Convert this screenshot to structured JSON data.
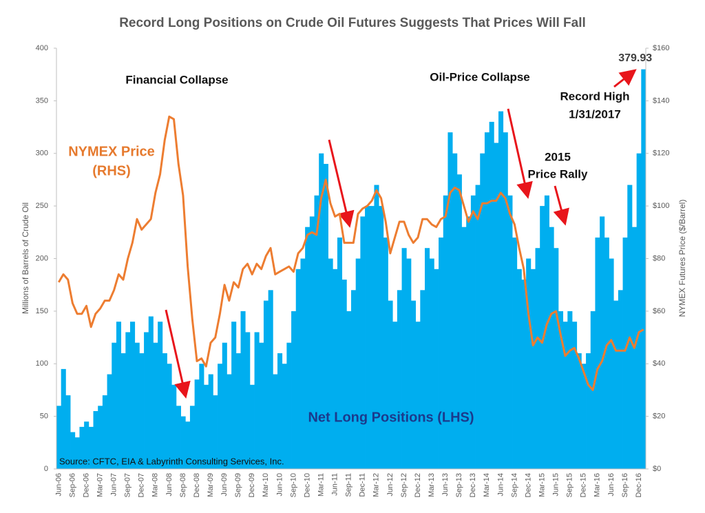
{
  "chart_data": {
    "type": "bar-line",
    "title": "Record Long Positions on Crude Oil Futures Suggests That Prices Will Fall",
    "y_label": "Millions of Barrels of Crude Oil",
    "y2_label": "NYMEX Futures Price ($/Barrel)",
    "source": "Source: CFTC, EIA & Labyrinth Consulting Services, Inc.",
    "annotations": [
      "Financial Collapse",
      "Oil-Price Collapse",
      "Record High",
      "1/31/2017",
      "2015",
      "Price Rally",
      "NYMEX Price",
      "(RHS)",
      "Net Long Positions (LHS)"
    ],
    "categories": [
      "Jun-06",
      null,
      null,
      "Sep-06",
      null,
      null,
      "Dec-06",
      null,
      null,
      "Mar-07",
      null,
      null,
      "Jun-07",
      null,
      null,
      "Sep-07",
      null,
      null,
      "Dec-07",
      null,
      null,
      "Mar-08",
      null,
      null,
      "Jun-08",
      null,
      null,
      "Sep-08",
      null,
      null,
      "Dec-08",
      null,
      null,
      "Mar-09",
      null,
      null,
      "Jun-09",
      null,
      null,
      "Sep-09",
      null,
      null,
      "Dec-09",
      null,
      null,
      "Mar-10",
      null,
      null,
      "Jun-10",
      null,
      null,
      "Sep-10",
      null,
      null,
      "Dec-10",
      null,
      null,
      "Mar-11",
      null,
      null,
      "Jun-11",
      null,
      null,
      "Sep-11",
      null,
      null,
      "Dec-11",
      null,
      null,
      "Mar-12",
      null,
      null,
      "Jun-12",
      null,
      null,
      "Sep-12",
      null,
      null,
      "Dec-12",
      null,
      null,
      "Mar-13",
      null,
      null,
      "Jun-13",
      null,
      null,
      "Sep-13",
      null,
      null,
      "Dec-13",
      null,
      null,
      "Mar-14",
      null,
      null,
      "Jun-14",
      null,
      null,
      "Sep-14",
      null,
      null,
      "Dec-14",
      null,
      null,
      "Mar-15",
      null,
      null,
      "Jun-15",
      null,
      null,
      "Sep-15",
      null,
      null,
      "Dec-15",
      null,
      null,
      "Mar-16",
      null,
      null,
      "Jun-16",
      null,
      null,
      "Sep-16",
      null,
      null,
      "Dec-16",
      null
    ],
    "series": [
      {
        "name": "Net Long Positions (LHS)",
        "type": "bar",
        "color": "#00aeef",
        "values": [
          60,
          95,
          70,
          35,
          30,
          40,
          45,
          40,
          55,
          60,
          70,
          90,
          120,
          140,
          110,
          130,
          140,
          120,
          110,
          130,
          145,
          120,
          140,
          110,
          100,
          80,
          60,
          50,
          45,
          60,
          85,
          100,
          80,
          90,
          70,
          100,
          120,
          90,
          140,
          110,
          150,
          130,
          80,
          130,
          120,
          160,
          170,
          90,
          110,
          100,
          120,
          150,
          190,
          200,
          230,
          240,
          260,
          300,
          290,
          200,
          190,
          220,
          180,
          150,
          170,
          200,
          240,
          250,
          250,
          270,
          250,
          220,
          160,
          140,
          170,
          210,
          200,
          160,
          140,
          170,
          210,
          200,
          190,
          220,
          260,
          320,
          300,
          280,
          230,
          240,
          260,
          270,
          300,
          320,
          330,
          310,
          340,
          320,
          260,
          220,
          190,
          180,
          200,
          190,
          210,
          250,
          260,
          230,
          210,
          150,
          140,
          150,
          140,
          110,
          100,
          110,
          150,
          220,
          240,
          220,
          200,
          160,
          170,
          220,
          270,
          230,
          300,
          379.93
        ]
      },
      {
        "name": "NYMEX Price (RHS)",
        "type": "line",
        "axis": "y2",
        "color": "#ed7d31",
        "values": [
          71,
          74,
          72,
          63,
          59,
          59,
          62,
          54,
          59,
          61,
          64,
          64,
          68,
          74,
          72,
          80,
          86,
          95,
          91,
          93,
          95,
          105,
          112,
          125,
          134,
          133,
          116,
          104,
          77,
          57,
          41,
          42,
          39,
          48,
          50,
          59,
          70,
          64,
          71,
          69,
          76,
          78,
          74,
          78,
          76,
          81,
          84,
          74,
          75,
          76,
          77,
          75,
          82,
          84,
          89,
          90,
          89,
          103,
          110,
          101,
          96,
          97,
          86,
          86,
          86,
          97,
          99,
          100,
          102,
          106,
          103,
          94,
          82,
          88,
          94,
          94,
          89,
          86,
          88,
          95,
          95,
          93,
          92,
          95,
          96,
          105,
          107,
          106,
          100,
          94,
          98,
          95,
          101,
          101,
          102,
          102,
          105,
          103,
          97,
          93,
          84,
          76,
          59,
          47,
          50,
          48,
          55,
          59,
          60,
          51,
          43,
          45,
          46,
          42,
          37,
          32,
          30,
          38,
          41,
          47,
          49,
          45,
          45,
          45,
          50,
          46,
          52,
          53
        ]
      }
    ],
    "ylim": [
      0,
      400
    ],
    "yticks": [
      0,
      50,
      100,
      150,
      200,
      250,
      300,
      350,
      400
    ],
    "y2lim": [
      0,
      160
    ],
    "y2ticks": [
      {
        "value": 0,
        "label": "$0"
      },
      {
        "value": 20,
        "label": "$20"
      },
      {
        "value": 40,
        "label": "$40"
      },
      {
        "value": 60,
        "label": "$60"
      },
      {
        "value": 80,
        "label": "$80"
      },
      {
        "value": 100,
        "label": "$100"
      },
      {
        "value": 120,
        "label": "$120"
      },
      {
        "value": 140,
        "label": "$140"
      },
      {
        "value": 160,
        "label": "$160"
      }
    ],
    "grid": false
  }
}
